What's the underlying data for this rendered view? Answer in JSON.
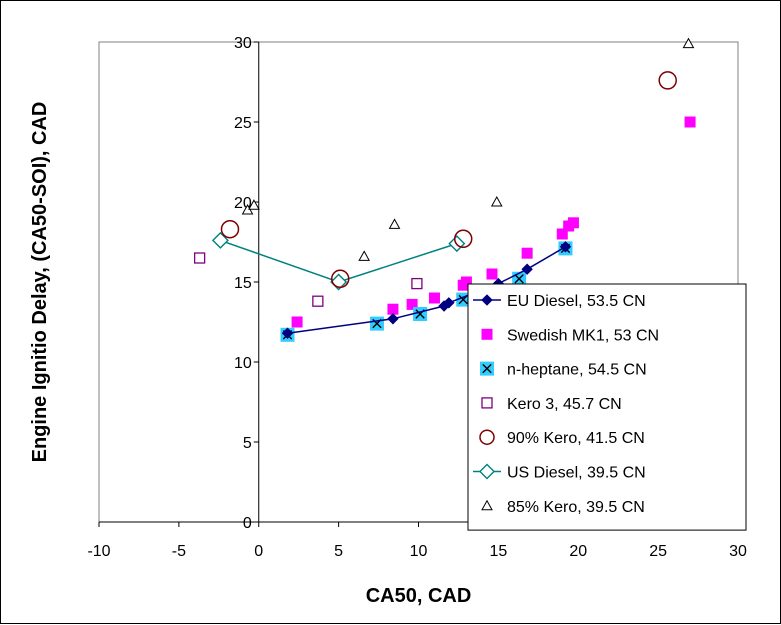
{
  "chart_data": {
    "type": "scatter",
    "title": "",
    "xlabel": "CA50, CAD",
    "ylabel": "Engine Ignitio Delay, (CA50-SOI), CAD",
    "xlim": [
      -10,
      30
    ],
    "ylim": [
      0,
      30
    ],
    "xticks": [
      -10,
      -5,
      0,
      5,
      10,
      15,
      20,
      25,
      30
    ],
    "yticks": [
      0,
      5,
      10,
      15,
      20,
      25,
      30
    ],
    "legend_position": "bottom-right",
    "grid": false,
    "series": [
      {
        "name": "EU Diesel, 53.5 CN",
        "marker": "diamond-filled",
        "line": true,
        "color": "#000080",
        "x": [
          1.8,
          8.4,
          11.6,
          11.9,
          15.0,
          16.8,
          19.2
        ],
        "y": [
          11.8,
          12.7,
          13.5,
          13.7,
          14.9,
          15.8,
          17.2
        ]
      },
      {
        "name": "Swedish MK1, 53 CN",
        "marker": "square-filled",
        "line": false,
        "color": "#ff00ff",
        "x": [
          2.4,
          8.4,
          9.6,
          11.0,
          12.8,
          13.0,
          14.6,
          16.8,
          19.0,
          19.4,
          19.7,
          27.0
        ],
        "y": [
          12.5,
          13.3,
          13.6,
          14.0,
          14.8,
          15.0,
          15.5,
          16.8,
          18.0,
          18.5,
          18.7,
          25.0
        ]
      },
      {
        "name": "n-heptane, 54.5 CN",
        "marker": "square-x",
        "line": false,
        "color": "#33ccff",
        "x": [
          1.8,
          7.4,
          10.1,
          12.8,
          16.3,
          19.2
        ],
        "y": [
          11.7,
          12.4,
          13.0,
          13.9,
          15.2,
          17.1
        ]
      },
      {
        "name": "Kero 3, 45.7 CN",
        "marker": "square-open",
        "line": false,
        "color": "#800080",
        "x": [
          -3.7,
          3.7,
          9.9
        ],
        "y": [
          16.5,
          13.8,
          14.9
        ]
      },
      {
        "name": "90% Kero, 41.5 CN",
        "marker": "circle-open",
        "line": false,
        "color": "#800000",
        "x": [
          -1.8,
          5.1,
          12.8,
          25.6
        ],
        "y": [
          18.3,
          15.2,
          17.7,
          27.6
        ]
      },
      {
        "name": "US Diesel, 39.5 CN",
        "marker": "diamond-open",
        "line": true,
        "color": "#008080",
        "x": [
          -2.4,
          5.0,
          12.4
        ],
        "y": [
          17.6,
          15.0,
          17.4
        ]
      },
      {
        "name": "85% Kero, 39.5 CN",
        "marker": "triangle-open",
        "line": false,
        "color": "#000000",
        "x": [
          -0.7,
          -0.3,
          6.6,
          8.5,
          14.9,
          26.9
        ],
        "y": [
          19.5,
          19.8,
          16.6,
          18.6,
          20.0,
          29.9
        ]
      }
    ]
  }
}
